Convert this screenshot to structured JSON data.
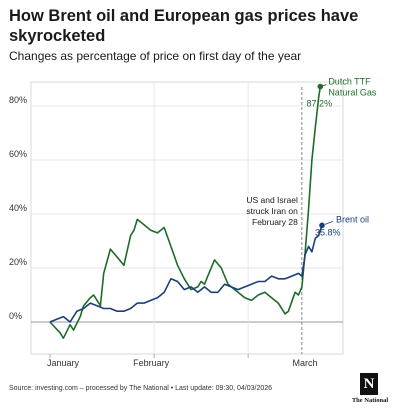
{
  "header": {
    "title": "How Brent oil and European gas prices have skyrocketed",
    "subtitle": "Changes as percentage of price on first day of the year"
  },
  "chart_data": {
    "type": "line",
    "ylabel": "",
    "xlabel": "",
    "y_ticks": [
      "80%",
      "60%",
      "40%",
      "20%",
      "0%"
    ],
    "y_tick_values": [
      80,
      60,
      40,
      20,
      0
    ],
    "x_ticks": [
      "January",
      "February",
      "March"
    ],
    "ylim": [
      -12,
      92
    ],
    "grid": true,
    "series": [
      {
        "name": "Dutch TTF Natural Gas",
        "color": "#1e6b2a",
        "end_label": "87.2%",
        "values": [
          [
            0,
            0
          ],
          [
            3,
            -4
          ],
          [
            4,
            -6
          ],
          [
            6,
            -1
          ],
          [
            7,
            -3
          ],
          [
            9,
            2
          ],
          [
            10,
            6
          ],
          [
            12,
            9
          ],
          [
            13,
            10
          ],
          [
            15,
            6
          ],
          [
            16,
            18
          ],
          [
            18,
            27
          ],
          [
            20,
            24
          ],
          [
            22,
            21
          ],
          [
            24,
            32
          ],
          [
            25,
            34
          ],
          [
            26,
            38
          ],
          [
            28,
            36
          ],
          [
            30,
            34
          ],
          [
            32,
            33
          ],
          [
            34,
            35
          ],
          [
            36,
            28
          ],
          [
            38,
            21
          ],
          [
            40,
            16
          ],
          [
            42,
            12
          ],
          [
            44,
            13
          ],
          [
            45,
            15
          ],
          [
            46,
            14
          ],
          [
            47,
            17
          ],
          [
            49,
            23
          ],
          [
            51,
            20
          ],
          [
            53,
            14
          ],
          [
            55,
            12
          ],
          [
            57,
            10
          ],
          [
            58,
            9
          ],
          [
            60,
            8
          ],
          [
            61,
            9
          ],
          [
            62,
            10
          ],
          [
            64,
            11
          ],
          [
            66,
            9
          ],
          [
            68,
            7
          ],
          [
            70,
            3
          ],
          [
            71,
            4
          ],
          [
            73,
            11
          ],
          [
            74,
            10
          ],
          [
            75,
            13
          ],
          [
            76,
            26
          ],
          [
            77,
            42
          ],
          [
            78,
            60
          ],
          [
            79,
            72
          ],
          [
            80,
            83
          ],
          [
            80.5,
            87.2
          ]
        ]
      },
      {
        "name": "Brent oil",
        "color": "#1b3f7a",
        "end_label": "35.8%",
        "values": [
          [
            0,
            0
          ],
          [
            2,
            1
          ],
          [
            4,
            2
          ],
          [
            6,
            0
          ],
          [
            8,
            4
          ],
          [
            10,
            5
          ],
          [
            12,
            7
          ],
          [
            14,
            6
          ],
          [
            16,
            5
          ],
          [
            18,
            5
          ],
          [
            20,
            4
          ],
          [
            22,
            4
          ],
          [
            24,
            5
          ],
          [
            26,
            7
          ],
          [
            28,
            7
          ],
          [
            30,
            8
          ],
          [
            32,
            9
          ],
          [
            34,
            11
          ],
          [
            36,
            16
          ],
          [
            38,
            15
          ],
          [
            40,
            12
          ],
          [
            42,
            13
          ],
          [
            44,
            11
          ],
          [
            46,
            13
          ],
          [
            48,
            11
          ],
          [
            50,
            11
          ],
          [
            52,
            14
          ],
          [
            54,
            13
          ],
          [
            56,
            12
          ],
          [
            58,
            13
          ],
          [
            60,
            14
          ],
          [
            62,
            15
          ],
          [
            64,
            15
          ],
          [
            66,
            17
          ],
          [
            68,
            16
          ],
          [
            70,
            16
          ],
          [
            72,
            17
          ],
          [
            74,
            18
          ],
          [
            75,
            17
          ],
          [
            76,
            25
          ],
          [
            77,
            28
          ],
          [
            78,
            26
          ],
          [
            79,
            31
          ],
          [
            80,
            32
          ],
          [
            81,
            35.8
          ]
        ]
      }
    ],
    "annotation": {
      "lines": [
        "US and Israel",
        "struck Iran on",
        "February 28"
      ],
      "x": 75
    }
  },
  "footer": {
    "source": "Source: investing.com – processed by The National • Last update: 09:30, 04/03/2026",
    "logo_letter": "N",
    "logo_text": "The National"
  }
}
